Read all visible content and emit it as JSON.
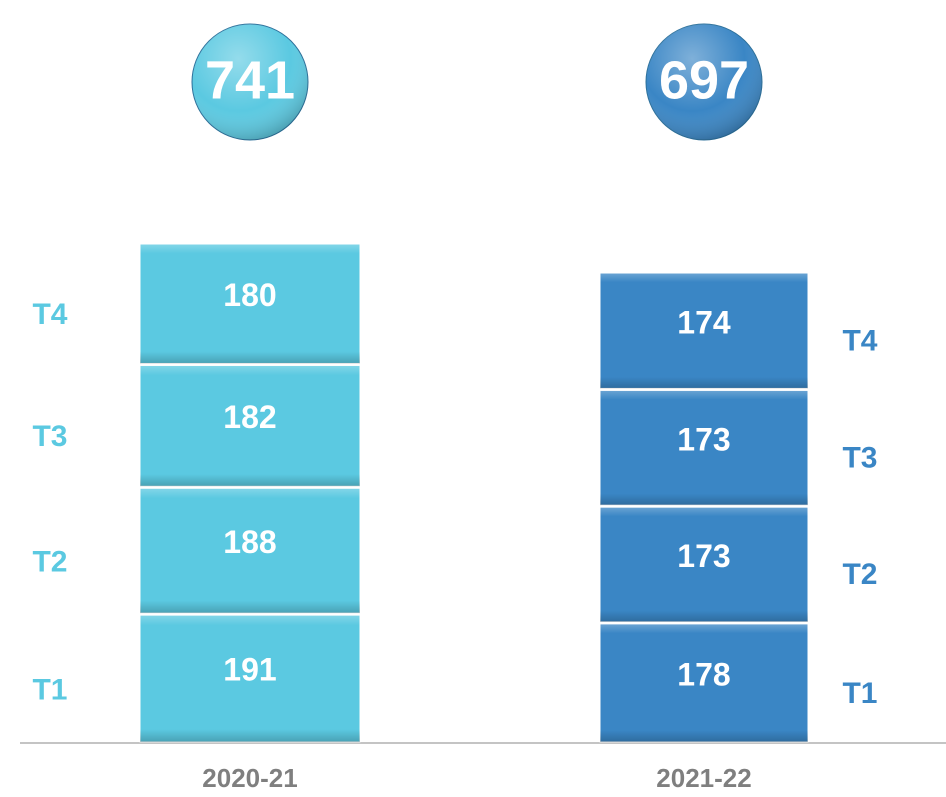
{
  "chart_data": {
    "type": "stacked_bar",
    "categories": [
      "2020-21",
      "2021-22"
    ],
    "totals": [
      741,
      697
    ],
    "colors": [
      "#5bc9e1",
      "#3a86c5"
    ],
    "series": [
      {
        "name": "T1",
        "values": [
          191,
          178
        ]
      },
      {
        "name": "T2",
        "values": [
          188,
          173
        ]
      },
      {
        "name": "T3",
        "values": [
          182,
          173
        ]
      },
      {
        "name": "T4",
        "values": [
          180,
          174
        ]
      }
    ]
  }
}
